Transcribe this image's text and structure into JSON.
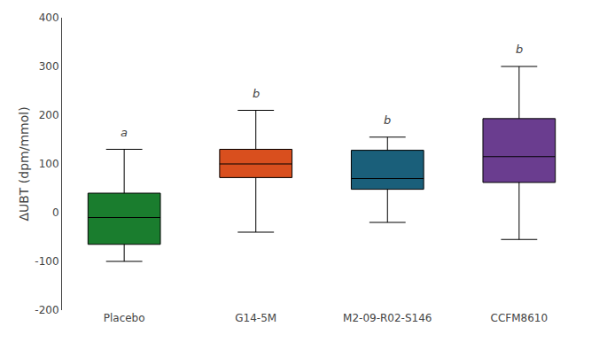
{
  "chart_data": {
    "type": "box",
    "categories": [
      "Placebo",
      "G14-5M",
      "M2-09-R02-S146",
      "CCFM8610"
    ],
    "colors": [
      "#1a7d2e",
      "#d94f1e",
      "#1a5f7a",
      "#6a3d8f"
    ],
    "ylabel": "ΔUBT (dpm/mmol)",
    "ylim": [
      -200,
      400
    ],
    "yticks": [
      -200,
      -100,
      0,
      100,
      200,
      300,
      400
    ],
    "boxes": [
      {
        "whislo": -100,
        "q1": -65,
        "med": -10,
        "q3": 40,
        "whishi": 130
      },
      {
        "whislo": -40,
        "q1": 72,
        "med": 100,
        "q3": 130,
        "whishi": 210
      },
      {
        "whislo": -20,
        "q1": 48,
        "med": 70,
        "q3": 128,
        "whishi": 155
      },
      {
        "whislo": -55,
        "q1": 62,
        "med": 115,
        "q3": 193,
        "whishi": 300
      }
    ],
    "significance_labels": [
      "a",
      "b",
      "b",
      "b"
    ],
    "significance_label_y": [
      148,
      228,
      172,
      318
    ],
    "grid": false
  }
}
